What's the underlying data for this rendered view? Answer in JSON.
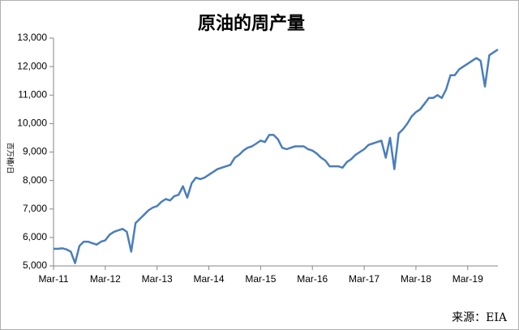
{
  "chart_data": {
    "type": "line",
    "title": "原油的周产量",
    "ylabel": "百万桶/日",
    "source": "来源：EIA",
    "color": "#4a7ebb",
    "grid": false,
    "x": [
      "2011-03",
      "2011-04",
      "2011-05",
      "2011-06",
      "2011-07",
      "2011-08",
      "2011-09",
      "2011-10",
      "2011-11",
      "2011-12",
      "2012-01",
      "2012-02",
      "2012-03",
      "2012-04",
      "2012-05",
      "2012-06",
      "2012-07",
      "2012-08",
      "2012-09",
      "2012-10",
      "2012-11",
      "2012-12",
      "2013-01",
      "2013-02",
      "2013-03",
      "2013-04",
      "2013-05",
      "2013-06",
      "2013-07",
      "2013-08",
      "2013-09",
      "2013-10",
      "2013-11",
      "2013-12",
      "2014-01",
      "2014-02",
      "2014-03",
      "2014-04",
      "2014-05",
      "2014-06",
      "2014-07",
      "2014-08",
      "2014-09",
      "2014-10",
      "2014-11",
      "2014-12",
      "2015-01",
      "2015-02",
      "2015-03",
      "2015-04",
      "2015-05",
      "2015-06",
      "2015-07",
      "2015-08",
      "2015-09",
      "2015-10",
      "2015-11",
      "2015-12",
      "2016-01",
      "2016-02",
      "2016-03",
      "2016-04",
      "2016-05",
      "2016-06",
      "2016-07",
      "2016-08",
      "2016-09",
      "2016-10",
      "2016-11",
      "2016-12",
      "2017-01",
      "2017-02",
      "2017-03",
      "2017-04",
      "2017-05",
      "2017-06",
      "2017-07",
      "2017-08",
      "2017-09",
      "2017-10",
      "2017-11",
      "2017-12",
      "2018-01",
      "2018-02",
      "2018-03",
      "2018-04",
      "2018-05",
      "2018-06",
      "2018-07",
      "2018-08",
      "2018-09",
      "2018-10",
      "2018-11",
      "2018-12",
      "2019-01",
      "2019-02",
      "2019-03",
      "2019-04",
      "2019-05",
      "2019-06",
      "2019-07",
      "2019-08",
      "2019-09",
      "2019-10"
    ],
    "values": [
      5600,
      5600,
      5620,
      5580,
      5500,
      5100,
      5700,
      5850,
      5850,
      5800,
      5750,
      5850,
      5900,
      6100,
      6200,
      6250,
      6300,
      6200,
      5500,
      6500,
      6650,
      6800,
      6950,
      7050,
      7100,
      7250,
      7350,
      7300,
      7450,
      7500,
      7800,
      7400,
      7900,
      8100,
      8050,
      8100,
      8200,
      8300,
      8400,
      8450,
      8500,
      8550,
      8800,
      8900,
      9050,
      9150,
      9200,
      9300,
      9400,
      9350,
      9600,
      9600,
      9450,
      9150,
      9100,
      9150,
      9200,
      9200,
      9200,
      9100,
      9050,
      8950,
      8800,
      8700,
      8500,
      8500,
      8500,
      8450,
      8650,
      8750,
      8900,
      9000,
      9100,
      9250,
      9300,
      9350,
      9400,
      8800,
      9500,
      8400,
      9650,
      9800,
      10000,
      10250,
      10400,
      10500,
      10700,
      10900,
      10900,
      11000,
      10900,
      11200,
      11700,
      11700,
      11900,
      12000,
      12100,
      12200,
      12300,
      12200,
      11300,
      12400,
      12500,
      12600
    ],
    "xlim": [
      "2011-03",
      "2019-10"
    ],
    "xticks": [
      {
        "value": "2011-03",
        "label": "Mar-11"
      },
      {
        "value": "2012-03",
        "label": "Mar-12"
      },
      {
        "value": "2013-03",
        "label": "Mar-13"
      },
      {
        "value": "2014-03",
        "label": "Mar-14"
      },
      {
        "value": "2015-03",
        "label": "Mar-15"
      },
      {
        "value": "2016-03",
        "label": "Mar-16"
      },
      {
        "value": "2017-03",
        "label": "Mar-17"
      },
      {
        "value": "2018-03",
        "label": "Mar-18"
      },
      {
        "value": "2019-03",
        "label": "Mar-19"
      }
    ],
    "ylim": [
      5000,
      13000
    ],
    "yticks": [
      {
        "value": 5000,
        "label": "5,000"
      },
      {
        "value": 6000,
        "label": "6,000"
      },
      {
        "value": 7000,
        "label": "7,000"
      },
      {
        "value": 8000,
        "label": "8,000"
      },
      {
        "value": 9000,
        "label": "9,000"
      },
      {
        "value": 10000,
        "label": "10,000"
      },
      {
        "value": 11000,
        "label": "11,000"
      },
      {
        "value": 12000,
        "label": "12,000"
      },
      {
        "value": 13000,
        "label": "13,000"
      }
    ]
  }
}
